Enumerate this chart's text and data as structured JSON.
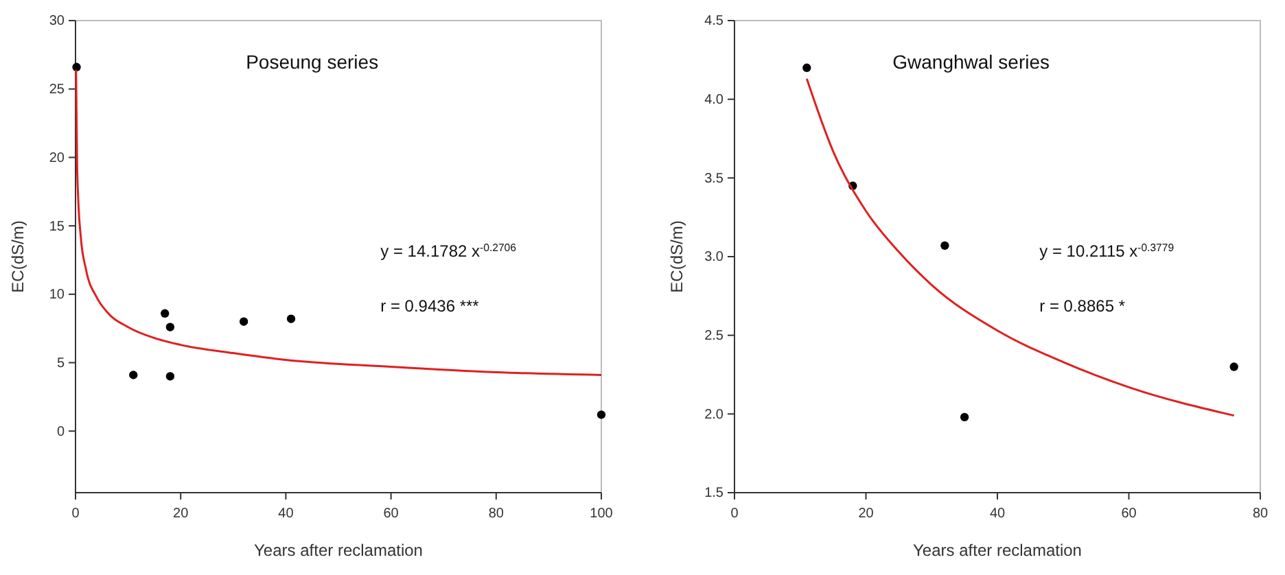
{
  "chart_data": [
    {
      "type": "scatter",
      "title": "Poseung series",
      "xlabel": "Years after reclamation",
      "ylabel": "EC(dS/m)",
      "xlim": [
        0,
        100
      ],
      "ylim": [
        -4.5,
        30
      ],
      "xticks": [
        0,
        20,
        40,
        60,
        80,
        100
      ],
      "yticks": [
        0,
        5,
        10,
        15,
        20,
        25,
        30
      ],
      "grid": false,
      "annotations": [
        "y = 14.1782 x$^{-0.2706}$",
        "r = 0.9436 ***"
      ],
      "series": [
        {
          "color": "#000000",
          "marker": "circle",
          "x": [
            0.2,
            11,
            17,
            18,
            18,
            32,
            41,
            100
          ],
          "values": [
            26.6,
            4.1,
            8.6,
            7.6,
            4.0,
            8.0,
            8.2,
            1.2
          ]
        },
        {
          "type": "line",
          "color": "#e02020",
          "x": [
            0.1,
            0.3,
            0.5,
            1,
            2,
            4,
            6,
            10,
            15,
            20,
            30,
            40,
            60,
            80,
            100
          ],
          "values": [
            26.4,
            19.6,
            17.1,
            14.2,
            11.8,
            9.8,
            8.7,
            7.6,
            6.8,
            6.3,
            5.7,
            5.2,
            4.7,
            4.3,
            4.1
          ]
        }
      ]
    },
    {
      "type": "scatter",
      "title": "Gwanghwal series",
      "xlabel": "Years after reclamation",
      "ylabel": "EC(dS/m)",
      "xlim": [
        0,
        80
      ],
      "ylim": [
        1.5,
        4.5
      ],
      "xticks": [
        0,
        20,
        40,
        60,
        80
      ],
      "yticks": [
        {
          "value": 1.5,
          "label": "1.5"
        },
        {
          "value": 2,
          "label": "2.0"
        },
        {
          "value": 2.5,
          "label": "2.5"
        },
        {
          "value": 3,
          "label": "3.0"
        },
        {
          "value": 3.5,
          "label": "3.5"
        },
        {
          "value": 4,
          "label": "4.0"
        },
        {
          "value": 4.5,
          "label": "4.5"
        }
      ],
      "grid": false,
      "annotations": [
        "y = 10.2115 x$^{-0.3779}$",
        "r = 0.8865 *"
      ],
      "series": [
        {
          "color": "#000000",
          "marker": "circle",
          "x": [
            11,
            18,
            32,
            35,
            76
          ],
          "values": [
            4.2,
            3.45,
            3.07,
            1.98,
            2.3
          ]
        },
        {
          "type": "line",
          "color": "#e02020",
          "x": [
            11,
            15,
            20,
            25,
            30,
            40,
            50,
            60,
            76
          ],
          "values": [
            4.13,
            3.67,
            3.29,
            3.03,
            2.82,
            2.53,
            2.33,
            2.17,
            1.99
          ]
        }
      ]
    }
  ]
}
